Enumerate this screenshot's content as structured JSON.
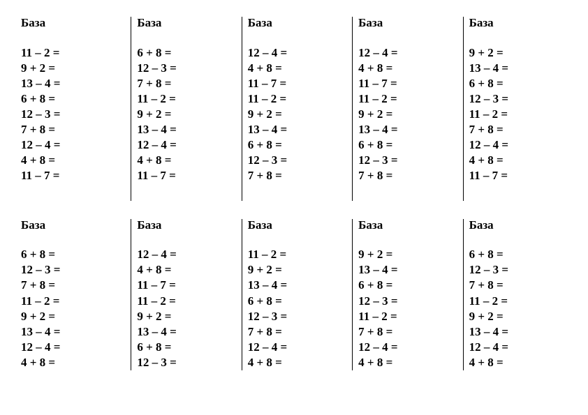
{
  "title_text": "База",
  "text_color": "#000000",
  "background_color": "#ffffff",
  "font_family": "Times New Roman",
  "font_size_pt": 13,
  "font_weight": "bold",
  "divider_color": "#000000",
  "layout": {
    "rows": 2,
    "cols": 5
  },
  "cards": [
    {
      "row": 0,
      "col": 0,
      "problems": [
        "11 – 2 =",
        "9 + 2 =",
        "13 – 4 =",
        "6 + 8 =",
        "12 – 3 =",
        "7 + 8 =",
        "12 – 4 =",
        "4 + 8 =",
        "11 – 7 ="
      ]
    },
    {
      "row": 0,
      "col": 1,
      "problems": [
        "6 + 8 =",
        "12 – 3 =",
        "7 + 8 =",
        "11 – 2 =",
        "9 + 2 =",
        "13 – 4 =",
        "12 – 4 =",
        "4 + 8 =",
        "11 – 7 ="
      ]
    },
    {
      "row": 0,
      "col": 2,
      "problems": [
        "12 – 4 =",
        "4 + 8 =",
        "11 – 7 =",
        "11 – 2 =",
        "9 + 2 =",
        "13 – 4 =",
        "6 + 8 =",
        "12 – 3 =",
        "7 + 8 ="
      ]
    },
    {
      "row": 0,
      "col": 3,
      "problems": [
        "12 – 4 =",
        "4 + 8 =",
        "11 – 7 =",
        "11 – 2 =",
        "9 + 2 =",
        "13 – 4 =",
        "6 + 8 =",
        "12 – 3 =",
        "7 + 8 ="
      ]
    },
    {
      "row": 0,
      "col": 4,
      "problems": [
        "9 + 2 =",
        "13 – 4 =",
        "6 + 8 =",
        "12 – 3 =",
        "11 – 2 =",
        "7 + 8 =",
        "12 – 4 =",
        "4 + 8 =",
        "11 – 7 ="
      ]
    },
    {
      "row": 1,
      "col": 0,
      "problems": [
        "6 + 8 =",
        "12 – 3 =",
        "7 + 8 =",
        "11 – 2 =",
        "9 + 2 =",
        "13 – 4 =",
        "12 – 4 =",
        "4 + 8 ="
      ]
    },
    {
      "row": 1,
      "col": 1,
      "problems": [
        "12 – 4 =",
        "4 + 8 =",
        "11 – 7 =",
        "11 – 2 =",
        "9 + 2 =",
        "13 – 4 =",
        "6 + 8 =",
        "12 – 3 ="
      ]
    },
    {
      "row": 1,
      "col": 2,
      "problems": [
        "11 – 2 =",
        "9 + 2 =",
        "13 – 4 =",
        "6 + 8 =",
        "12 – 3 =",
        "7 + 8 =",
        "12 – 4 =",
        "4 + 8 ="
      ]
    },
    {
      "row": 1,
      "col": 3,
      "problems": [
        "9 + 2 =",
        "13 – 4 =",
        "6 + 8 =",
        "12 – 3 =",
        "11 – 2 =",
        "7 + 8 =",
        "12 – 4 =",
        "4 + 8 ="
      ]
    },
    {
      "row": 1,
      "col": 4,
      "problems": [
        "6 + 8 =",
        "12 – 3 =",
        "7 + 8 =",
        "11 – 2 =",
        "9 + 2 =",
        "13 – 4 =",
        "12 – 4 =",
        "4 + 8 ="
      ]
    }
  ]
}
